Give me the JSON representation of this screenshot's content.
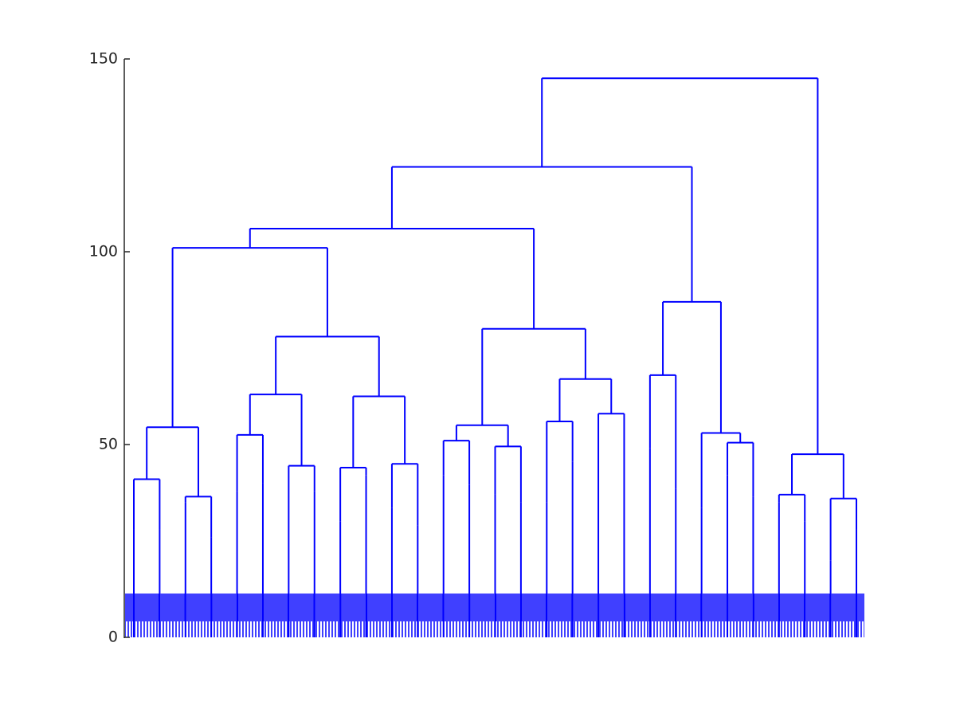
{
  "chart_data": {
    "type": "dendrogram",
    "color": "#0000ff",
    "ylim": [
      0,
      150
    ],
    "yticks": [
      0,
      50,
      100,
      150
    ],
    "tree": {
      "height": 145,
      "children": [
        {
          "height": 122,
          "children": [
            {
              "height": 106,
              "children": [
                {
                  "height": 101,
                  "children": [
                    {
                      "height": 54.5,
                      "children": [
                        {
                          "height": 41,
                          "children": [
                            {
                              "height": 28
                            },
                            {
                              "height": 28
                            }
                          ]
                        },
                        {
                          "height": 36.5,
                          "children": [
                            {
                              "height": 35
                            },
                            {
                              "height": 26
                            }
                          ]
                        }
                      ]
                    },
                    {
                      "height": 78,
                      "children": [
                        {
                          "height": 63,
                          "children": [
                            {
                              "height": 52.5,
                              "children": [
                                {
                                  "height": 38
                                },
                                {
                                  "height": 40
                                }
                              ]
                            },
                            {
                              "height": 44.5,
                              "children": [
                                {
                                  "height": 28
                                },
                                {
                                  "height": 38
                                }
                              ]
                            }
                          ]
                        },
                        {
                          "height": 62.5,
                          "children": [
                            {
                              "height": 44,
                              "children": [
                                {
                                  "height": 30
                                },
                                {
                                  "height": 42
                                }
                              ]
                            },
                            {
                              "height": 45,
                              "children": [
                                {
                                  "height": 33.5
                                },
                                {
                                  "height": 29
                                }
                              ]
                            }
                          ]
                        }
                      ]
                    }
                  ]
                },
                {
                  "height": 80,
                  "children": [
                    {
                      "height": 55,
                      "children": [
                        {
                          "height": 51,
                          "children": [
                            {
                              "height": 42
                            },
                            {
                              "height": 39.5
                            }
                          ]
                        },
                        {
                          "height": 49.5,
                          "children": [
                            {
                              "height": 37
                            },
                            {
                              "height": 35
                            }
                          ]
                        }
                      ]
                    },
                    {
                      "height": 67,
                      "children": [
                        {
                          "height": 56,
                          "children": [
                            {
                              "height": 35
                            },
                            {
                              "height": 45.5
                            }
                          ]
                        },
                        {
                          "height": 58,
                          "children": [
                            {
                              "height": 41
                            },
                            {
                              "height": 34.5
                            }
                          ]
                        }
                      ]
                    }
                  ]
                }
              ]
            },
            {
              "height": 87,
              "children": [
                {
                  "height": 68,
                  "children": [
                    {
                      "height": 49
                    },
                    {
                      "height": 38.5
                    }
                  ]
                },
                {
                  "height": 53,
                  "children": [
                    {
                      "height": 33.5
                    },
                    {
                      "height": 50.5,
                      "children": [
                        {
                          "height": 42
                        },
                        {
                          "height": 36.5
                        }
                      ]
                    }
                  ]
                }
              ]
            }
          ]
        },
        {
          "height": 47.5,
          "children": [
            {
              "height": 37,
              "children": [
                {
                  "height": 35
                },
                {
                  "height": 30
                }
              ]
            },
            {
              "height": 36,
              "children": [
                {
                  "height": 20
                },
                {
                  "height": 28
                }
              ]
            }
          ]
        }
      ]
    }
  }
}
